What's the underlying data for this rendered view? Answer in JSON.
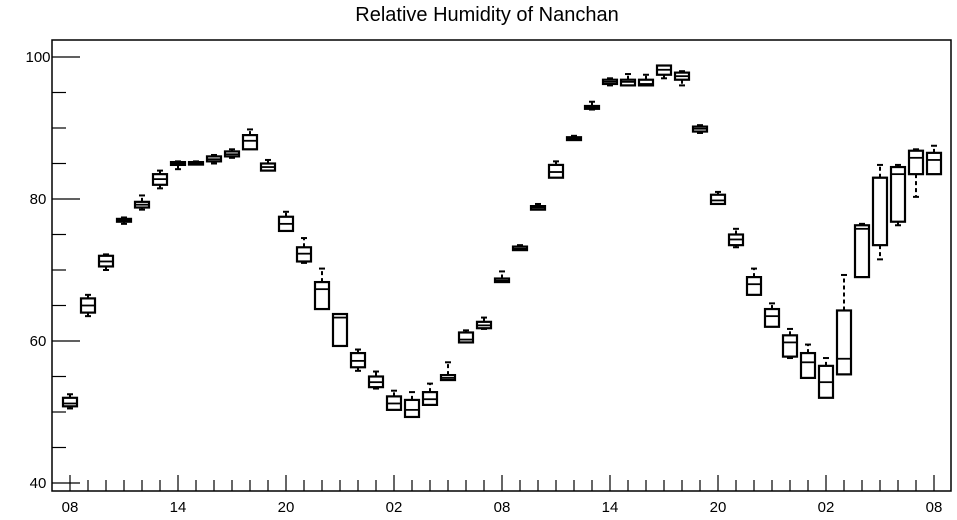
{
  "chart_data": {
    "type": "box",
    "title": "Relative Humidity of Nanchan",
    "xlabel": "",
    "ylabel": "",
    "ylim": [
      40,
      102
    ],
    "yticks": [
      40,
      60,
      80,
      100
    ],
    "ytick_labels": [
      "40",
      "60",
      "80",
      "100"
    ],
    "xtick_labels": [
      "08",
      "14",
      "20",
      "02",
      "08",
      "14",
      "20",
      "02",
      "08"
    ],
    "xtick_hours": [
      0,
      6,
      12,
      18,
      24,
      30,
      36,
      42,
      48
    ],
    "grid": false,
    "legend": "none",
    "boxes": [
      {
        "hour": 0,
        "whislo": 50.5,
        "q1": 50.8,
        "median": 51.2,
        "q3": 52.0,
        "whishi": 52.5
      },
      {
        "hour": 1,
        "whislo": 63.5,
        "q1": 64.0,
        "median": 65.0,
        "q3": 66.0,
        "whishi": 66.5
      },
      {
        "hour": 2,
        "whislo": 70.0,
        "q1": 70.5,
        "median": 71.2,
        "q3": 72.0,
        "whishi": 72.2
      },
      {
        "hour": 3,
        "whislo": 76.5,
        "q1": 76.8,
        "median": 77.0,
        "q3": 77.2,
        "whishi": 77.4
      },
      {
        "hour": 4,
        "whislo": 78.5,
        "q1": 78.8,
        "median": 79.2,
        "q3": 79.6,
        "whishi": 80.5
      },
      {
        "hour": 5,
        "whislo": 81.5,
        "q1": 82.0,
        "median": 82.8,
        "q3": 83.5,
        "whishi": 84.0
      },
      {
        "hour": 6,
        "whislo": 84.2,
        "q1": 84.8,
        "median": 85.0,
        "q3": 85.2,
        "whishi": 85.3
      },
      {
        "hour": 7,
        "whislo": 85.0,
        "q1": 85.0,
        "median": 85.1,
        "q3": 85.2,
        "whishi": 85.3
      },
      {
        "hour": 8,
        "whislo": 85.0,
        "q1": 85.3,
        "median": 85.6,
        "q3": 86.0,
        "whishi": 86.2
      },
      {
        "hour": 9,
        "whislo": 85.8,
        "q1": 86.0,
        "median": 86.3,
        "q3": 86.7,
        "whishi": 87.0
      },
      {
        "hour": 10,
        "whislo": 87.0,
        "q1": 87.0,
        "median": 88.2,
        "q3": 89.0,
        "whishi": 89.8
      },
      {
        "hour": 11,
        "whislo": 84.0,
        "q1": 84.0,
        "median": 84.5,
        "q3": 85.0,
        "whishi": 85.5
      },
      {
        "hour": 12,
        "whislo": 75.5,
        "q1": 75.5,
        "median": 76.5,
        "q3": 77.5,
        "whishi": 78.2
      },
      {
        "hour": 13,
        "whislo": 71.0,
        "q1": 71.2,
        "median": 72.3,
        "q3": 73.2,
        "whishi": 74.5
      },
      {
        "hour": 14,
        "whislo": 64.5,
        "q1": 64.5,
        "median": 67.3,
        "q3": 68.3,
        "whishi": 70.2
      },
      {
        "hour": 15,
        "whislo": 59.3,
        "q1": 59.3,
        "median": 63.3,
        "q3": 63.8,
        "whishi": 63.8
      },
      {
        "hour": 16,
        "whislo": 55.8,
        "q1": 56.3,
        "median": 57.2,
        "q3": 58.3,
        "whishi": 58.8
      },
      {
        "hour": 17,
        "whislo": 53.3,
        "q1": 53.5,
        "median": 54.2,
        "q3": 55.0,
        "whishi": 55.7
      },
      {
        "hour": 18,
        "whislo": 50.3,
        "q1": 50.3,
        "median": 51.2,
        "q3": 52.2,
        "whishi": 53.0
      },
      {
        "hour": 19,
        "whislo": 49.3,
        "q1": 49.3,
        "median": 50.3,
        "q3": 51.7,
        "whishi": 52.8
      },
      {
        "hour": 20,
        "whislo": 51.0,
        "q1": 51.0,
        "median": 51.8,
        "q3": 52.8,
        "whishi": 54.0
      },
      {
        "hour": 21,
        "whislo": 54.5,
        "q1": 54.5,
        "median": 54.8,
        "q3": 55.2,
        "whishi": 57.0
      },
      {
        "hour": 22,
        "whislo": 59.8,
        "q1": 59.8,
        "median": 60.2,
        "q3": 61.2,
        "whishi": 61.5
      },
      {
        "hour": 23,
        "whislo": 61.7,
        "q1": 61.8,
        "median": 62.2,
        "q3": 62.7,
        "whishi": 63.3
      },
      {
        "hour": 24,
        "whislo": 68.3,
        "q1": 68.3,
        "median": 68.5,
        "q3": 68.8,
        "whishi": 69.8
      },
      {
        "hour": 25,
        "whislo": 72.8,
        "q1": 72.8,
        "median": 73.0,
        "q3": 73.3,
        "whishi": 73.5
      },
      {
        "hour": 26,
        "whislo": 78.5,
        "q1": 78.5,
        "median": 78.8,
        "q3": 79.0,
        "whishi": 79.3
      },
      {
        "hour": 27,
        "whislo": 83.0,
        "q1": 83.0,
        "median": 83.8,
        "q3": 84.8,
        "whishi": 85.3
      },
      {
        "hour": 28,
        "whislo": 88.3,
        "q1": 88.3,
        "median": 88.5,
        "q3": 88.7,
        "whishi": 88.9
      },
      {
        "hour": 29,
        "whislo": 92.6,
        "q1": 92.7,
        "median": 92.9,
        "q3": 93.1,
        "whishi": 93.7
      },
      {
        "hour": 30,
        "whislo": 96.0,
        "q1": 96.2,
        "median": 96.5,
        "q3": 96.8,
        "whishi": 97.0
      },
      {
        "hour": 31,
        "whislo": 96.0,
        "q1": 96.0,
        "median": 96.5,
        "q3": 96.8,
        "whishi": 97.6
      },
      {
        "hour": 32,
        "whislo": 96.0,
        "q1": 96.0,
        "median": 96.2,
        "q3": 96.8,
        "whishi": 97.5
      },
      {
        "hour": 33,
        "whislo": 97.0,
        "q1": 97.5,
        "median": 98.2,
        "q3": 98.8,
        "whishi": 98.8
      },
      {
        "hour": 34,
        "whislo": 96.0,
        "q1": 96.8,
        "median": 97.3,
        "q3": 97.8,
        "whishi": 98.0
      },
      {
        "hour": 35,
        "whislo": 89.3,
        "q1": 89.5,
        "median": 89.9,
        "q3": 90.2,
        "whishi": 90.4
      },
      {
        "hour": 36,
        "whislo": 79.3,
        "q1": 79.3,
        "median": 79.8,
        "q3": 80.6,
        "whishi": 81.0
      },
      {
        "hour": 37,
        "whislo": 73.2,
        "q1": 73.5,
        "median": 74.3,
        "q3": 75.0,
        "whishi": 75.8
      },
      {
        "hour": 38,
        "whislo": 66.5,
        "q1": 66.5,
        "median": 68.0,
        "q3": 69.0,
        "whishi": 70.2
      },
      {
        "hour": 39,
        "whislo": 62.0,
        "q1": 62.0,
        "median": 63.5,
        "q3": 64.5,
        "whishi": 65.3
      },
      {
        "hour": 40,
        "whislo": 57.6,
        "q1": 57.8,
        "median": 59.8,
        "q3": 60.8,
        "whishi": 61.7
      },
      {
        "hour": 41,
        "whislo": 54.8,
        "q1": 54.8,
        "median": 57.0,
        "q3": 58.3,
        "whishi": 59.5
      },
      {
        "hour": 42,
        "whislo": 52.0,
        "q1": 52.0,
        "median": 54.2,
        "q3": 56.5,
        "whishi": 57.6
      },
      {
        "hour": 43,
        "whislo": 55.3,
        "q1": 55.3,
        "median": 57.5,
        "q3": 64.3,
        "whishi": 69.3
      },
      {
        "hour": 44,
        "whislo": 69.0,
        "q1": 69.0,
        "median": 75.8,
        "q3": 76.3,
        "whishi": 76.5
      },
      {
        "hour": 45,
        "whislo": 71.5,
        "q1": 73.5,
        "median": 83.0,
        "q3": 83.0,
        "whishi": 84.8
      },
      {
        "hour": 46,
        "whislo": 76.3,
        "q1": 76.8,
        "median": 83.5,
        "q3": 84.5,
        "whishi": 84.8
      },
      {
        "hour": 47,
        "whislo": 80.3,
        "q1": 83.5,
        "median": 85.8,
        "q3": 86.8,
        "whishi": 87.0
      },
      {
        "hour": 48,
        "whislo": 83.5,
        "q1": 83.5,
        "median": 85.5,
        "q3": 86.5,
        "whishi": 87.5
      }
    ]
  }
}
